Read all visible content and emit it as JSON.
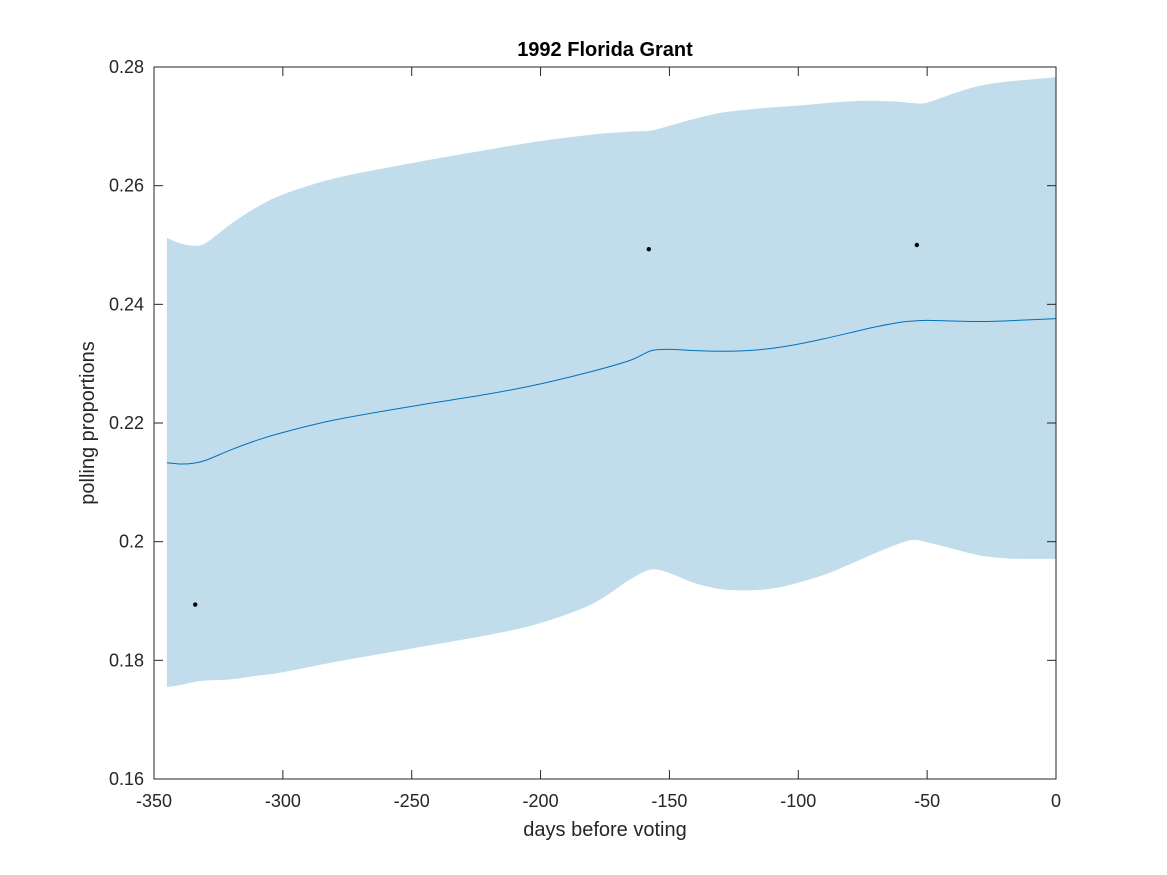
{
  "chart_data": {
    "type": "line",
    "title": "1992 Florida Grant",
    "xlabel": "days before voting",
    "ylabel": "polling proportions",
    "xlim": [
      -350,
      0
    ],
    "ylim": [
      0.16,
      0.28
    ],
    "x_ticks": [
      -350,
      -300,
      -250,
      -200,
      -150,
      -100,
      -50,
      0
    ],
    "x_tick_labels": [
      "-350",
      "-300",
      "-250",
      "-200",
      "-150",
      "-100",
      "-50",
      "0"
    ],
    "y_ticks": [
      0.16,
      0.18,
      0.2,
      0.22,
      0.24,
      0.26,
      0.28
    ],
    "y_tick_labels": [
      "0.16",
      "0.18",
      "0.2",
      "0.22",
      "0.24",
      "0.26",
      "0.28"
    ],
    "grid": false,
    "colors": {
      "band": "#c1dceb",
      "line": "#0072bd",
      "points": "#000000",
      "axes": "#262626"
    },
    "band": {
      "x": [
        -345,
        -340,
        -335,
        -330,
        -320,
        -310,
        -300,
        -280,
        -250,
        -220,
        -200,
        -180,
        -165,
        -157,
        -150,
        -140,
        -130,
        -120,
        -110,
        -100,
        -90,
        -80,
        -70,
        -60,
        -55,
        -50,
        -40,
        -30,
        -20,
        -10,
        0
      ],
      "upper": [
        0.2512,
        0.2503,
        0.2499,
        0.2503,
        0.2536,
        0.2564,
        0.2585,
        0.2612,
        0.2638,
        0.2661,
        0.2675,
        0.2686,
        0.2691,
        0.2693,
        0.2701,
        0.2713,
        0.2723,
        0.2728,
        0.2732,
        0.2735,
        0.2739,
        0.2742,
        0.2743,
        0.2741,
        0.2739,
        0.274,
        0.2755,
        0.2768,
        0.2775,
        0.2779,
        0.2783
      ],
      "lower": [
        0.1755,
        0.1758,
        0.1763,
        0.1766,
        0.1768,
        0.1774,
        0.178,
        0.1797,
        0.182,
        0.1843,
        0.1863,
        0.1895,
        0.1937,
        0.1953,
        0.1947,
        0.193,
        0.192,
        0.1918,
        0.1921,
        0.1931,
        0.1944,
        0.1962,
        0.1981,
        0.1998,
        0.2003,
        0.1999,
        0.1988,
        0.1977,
        0.1972,
        0.1971,
        0.1971
      ]
    },
    "series": [
      {
        "x": [
          -345,
          -340,
          -335,
          -330,
          -320,
          -310,
          -300,
          -280,
          -250,
          -220,
          -200,
          -180,
          -165,
          -157,
          -150,
          -140,
          -130,
          -120,
          -110,
          -100,
          -90,
          -80,
          -70,
          -60,
          -55,
          -50,
          -40,
          -30,
          -20,
          -10,
          0
        ],
        "values": [
          0.2133,
          0.2131,
          0.2132,
          0.2137,
          0.2155,
          0.2171,
          0.2184,
          0.2205,
          0.2228,
          0.2249,
          0.2266,
          0.2287,
          0.2306,
          0.2322,
          0.2324,
          0.2322,
          0.2321,
          0.2322,
          0.2326,
          0.2333,
          0.2342,
          0.2352,
          0.2362,
          0.237,
          0.2372,
          0.2373,
          0.2372,
          0.2371,
          0.2372,
          0.2374,
          0.2376
        ]
      }
    ],
    "points": [
      {
        "x": -334,
        "y": 0.1894
      },
      {
        "x": -158,
        "y": 0.2493
      },
      {
        "x": -54,
        "y": 0.25
      }
    ]
  }
}
